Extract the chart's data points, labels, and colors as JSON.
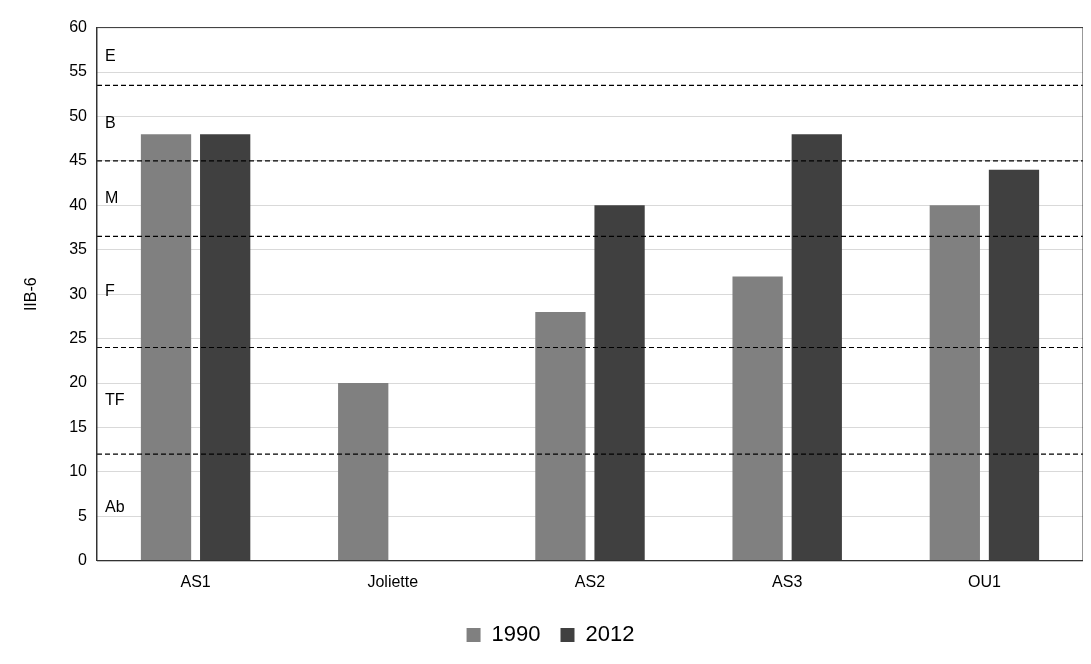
{
  "chart_data": {
    "type": "bar",
    "ylabel": "IIB-6",
    "categories": [
      "AS1",
      "Joliette",
      "AS2",
      "AS3",
      "OU1"
    ],
    "series": [
      {
        "name": "1990",
        "color": "#808080",
        "values": [
          48,
          20,
          28,
          32,
          40
        ]
      },
      {
        "name": "2012",
        "color": "#404040",
        "values": [
          48,
          null,
          40,
          48,
          44
        ]
      }
    ],
    "ylim": [
      0,
      60
    ],
    "yticks": [
      0,
      5,
      10,
      15,
      20,
      25,
      30,
      35,
      40,
      45,
      50,
      55,
      60
    ],
    "grid": "y",
    "legend": "bottom",
    "ref_lines": [
      {
        "axis": "y",
        "value": 53.5,
        "color": "#000000",
        "line_style": "dashed"
      },
      {
        "axis": "y",
        "value": 45,
        "color": "#000000",
        "line_style": "dashed"
      },
      {
        "axis": "y",
        "value": 36.5,
        "color": "#000000",
        "line_style": "dashed"
      },
      {
        "axis": "y",
        "value": 24,
        "color": "#000000",
        "line_style": "dashed"
      },
      {
        "axis": "y",
        "value": 12,
        "color": "#000000",
        "line_style": "dashed"
      }
    ],
    "annotations": [
      "E",
      "B",
      "M",
      "F",
      "TF",
      "Ab"
    ]
  }
}
